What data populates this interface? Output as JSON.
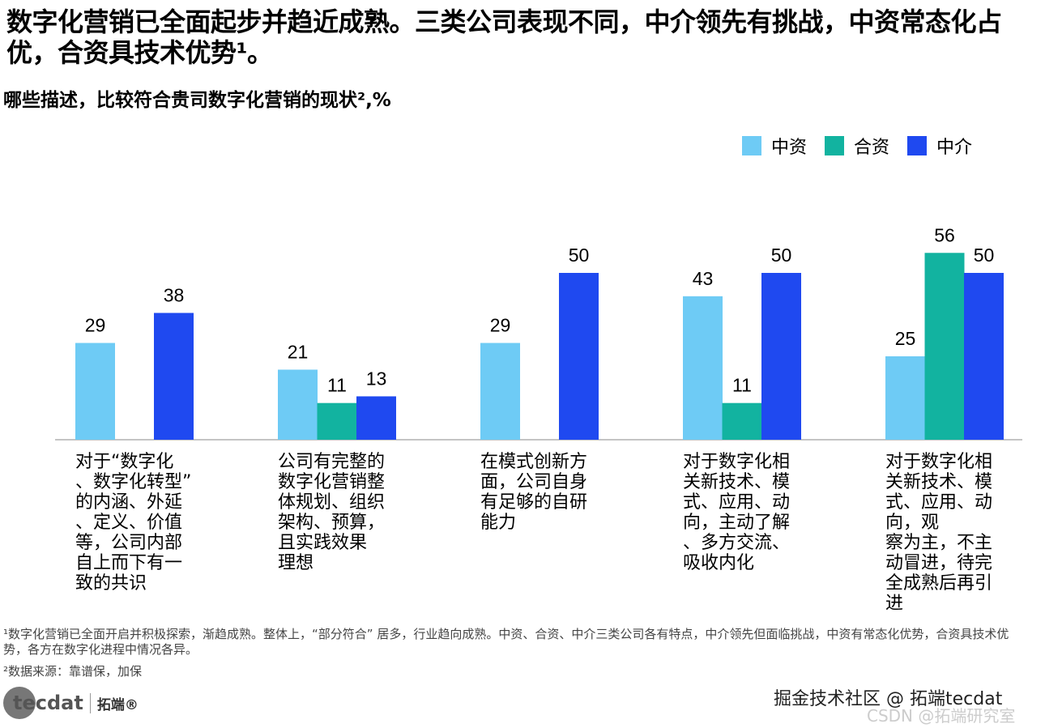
{
  "title": "数字化营销已全面起步并趋近成熟。三类公司表现不同，中介领先有挑战，中资常态化占优，合资具技术优势¹。",
  "chart_data": {
    "type": "bar",
    "title": "哪些描述，比较符合贵司数字化营销的现状²,%",
    "categories": [
      "对于“数字化\n、数字化转型”\n的内涵、外延\n、定义、价值\n等，公司内部\n自上而下有一\n致的共识",
      "公司有完整的\n数字化营销整\n体规划、组织\n架构、预算，\n且实践效果\n理想",
      "在模式创新方\n面，公司自身\n有足够的自研\n能力",
      "对于数字化相\n关新技术、模\n式、应用、动\n向，主动了解\n、多方交流、\n吸收内化",
      "对于数字化相\n关新技术、模\n式、应用、动\n向，观\n察为主，不主\n动冒进，待完\n全成熟后再引\n进"
    ],
    "series": [
      {
        "name": "中资",
        "color": "#6ecbf5",
        "values": [
          29,
          21,
          29,
          43,
          25
        ]
      },
      {
        "name": "合资",
        "color": "#12b3a0",
        "values": [
          null,
          11,
          null,
          11,
          56
        ]
      },
      {
        "name": "中介",
        "color": "#1f49f0",
        "values": [
          38,
          13,
          50,
          50,
          50
        ]
      }
    ],
    "legend": "top-right",
    "grid": false
  },
  "footnotes": [
    "¹数字化营销已全面开启并积极探索，渐趋成熟。整体上，“部分符合” 居多，行业趋向成熟。中资、合资、中介三类公司各有特点，中介领先但面临挑战，中资有常态化优势，合资具技术优势，各方在数字化进程中情况各异。",
    "²数据来源：靠谱保，加保"
  ],
  "logo": {
    "text": "tecdat",
    "brand": "拓端®"
  },
  "watermarks": [
    "掘金技术社区 @ 拓端tecdat",
    "CSDN @拓端研究室"
  ]
}
